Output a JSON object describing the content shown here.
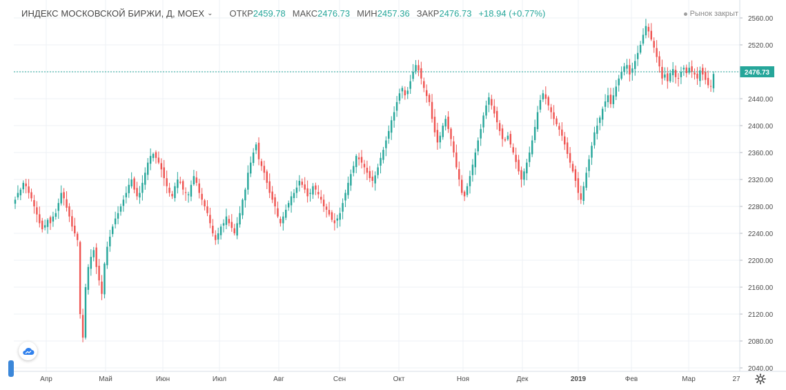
{
  "header": {
    "title": "ИНДЕКС МОСКОВСКОЙ БИРЖИ, Д, MOEX",
    "chevron_icon": "chevron-down-icon",
    "open_label": "ОТКР",
    "open_value": "2459.78",
    "high_label": "МАКС",
    "high_value": "2476.73",
    "low_label": "МИН",
    "low_value": "2457.36",
    "close_label": "ЗАКР",
    "close_value": "2476.73",
    "change": "+18.94 (+0.77%)",
    "market_status": "Рынок закрыт"
  },
  "price_label": "2476.73",
  "colors": {
    "up": "#26a69a",
    "down": "#ef5350",
    "grid": "#eef1f5",
    "axis_text": "#4a4a4a",
    "price_line": "#26a69a",
    "left_tab": "#3b87d9"
  },
  "icons": {
    "logo": "cloud-logo-icon",
    "settings": "gear-icon",
    "status_dot": "status-dot-icon"
  },
  "chart_data": {
    "type": "candlestick",
    "title": "ИНДЕКС МОСКОВСКОЙ БИРЖИ, Д, MOEX",
    "y_range": [
      2040,
      2560
    ],
    "y_ticks": [
      "2560.00",
      "2520.00",
      "2480.00",
      "2440.00",
      "2400.00",
      "2360.00",
      "2320.00",
      "2280.00",
      "2240.00",
      "2200.00",
      "2160.00",
      "2120.00",
      "2080.00",
      "2040.00"
    ],
    "x_labels": [
      "Апр",
      "Май",
      "Июн",
      "Июл",
      "Авг",
      "Сен",
      "Окт",
      "Ноя",
      "Дек",
      "2019",
      "Фев",
      "Мар",
      "27"
    ],
    "last_price": 2476.73,
    "grid": true,
    "series": [
      {
        "name": "MOEX",
        "closes": [
          2290,
          2300,
          2305,
          2315,
          2310,
          2300,
          2292,
          2280,
          2268,
          2255,
          2246,
          2252,
          2260,
          2255,
          2265,
          2270,
          2285,
          2300,
          2292,
          2278,
          2265,
          2250,
          2240,
          2230,
          2120,
          2085,
          2160,
          2190,
          2205,
          2215,
          2190,
          2170,
          2150,
          2195,
          2220,
          2235,
          2250,
          2262,
          2270,
          2280,
          2290,
          2300,
          2312,
          2320,
          2305,
          2295,
          2300,
          2315,
          2330,
          2345,
          2355,
          2358,
          2352,
          2345,
          2335,
          2322,
          2310,
          2300,
          2295,
          2310,
          2320,
          2315,
          2305,
          2300,
          2298,
          2312,
          2325,
          2315,
          2300,
          2290,
          2280,
          2270,
          2255,
          2240,
          2230,
          2240,
          2250,
          2255,
          2265,
          2255,
          2248,
          2240,
          2255,
          2270,
          2290,
          2305,
          2330,
          2345,
          2360,
          2372,
          2350,
          2340,
          2330,
          2315,
          2300,
          2290,
          2280,
          2265,
          2255,
          2265,
          2275,
          2285,
          2295,
          2300,
          2308,
          2318,
          2312,
          2305,
          2295,
          2300,
          2310,
          2305,
          2298,
          2290,
          2280,
          2275,
          2268,
          2260,
          2255,
          2262,
          2270,
          2285,
          2300,
          2315,
          2328,
          2340,
          2355,
          2350,
          2345,
          2338,
          2330,
          2322,
          2318,
          2326,
          2338,
          2352,
          2364,
          2378,
          2392,
          2408,
          2420,
          2435,
          2448,
          2456,
          2445,
          2452,
          2466,
          2480,
          2490,
          2482,
          2470,
          2456,
          2444,
          2435,
          2410,
          2390,
          2375,
          2385,
          2400,
          2410,
          2395,
          2380,
          2360,
          2338,
          2320,
          2300,
          2295,
          2310,
          2325,
          2342,
          2360,
          2378,
          2395,
          2415,
          2430,
          2442,
          2430,
          2418,
          2405,
          2392,
          2380,
          2378,
          2385,
          2372,
          2360,
          2346,
          2332,
          2320,
          2332,
          2345,
          2360,
          2378,
          2398,
          2420,
          2438,
          2448,
          2440,
          2430,
          2420,
          2410,
          2402,
          2394,
          2385,
          2372,
          2358,
          2345,
          2332,
          2318,
          2300,
          2290,
          2310,
          2330,
          2350,
          2370,
          2390,
          2400,
          2412,
          2425,
          2436,
          2445,
          2432,
          2445,
          2458,
          2470,
          2480,
          2488,
          2490,
          2476,
          2485,
          2496,
          2508,
          2520,
          2535,
          2548,
          2540,
          2528,
          2516,
          2502,
          2488,
          2470,
          2476,
          2466,
          2478,
          2484,
          2472,
          2470,
          2480,
          2486,
          2478,
          2486,
          2480,
          2476,
          2470,
          2482,
          2476,
          2468,
          2460,
          2458,
          2476.73
        ]
      }
    ]
  }
}
